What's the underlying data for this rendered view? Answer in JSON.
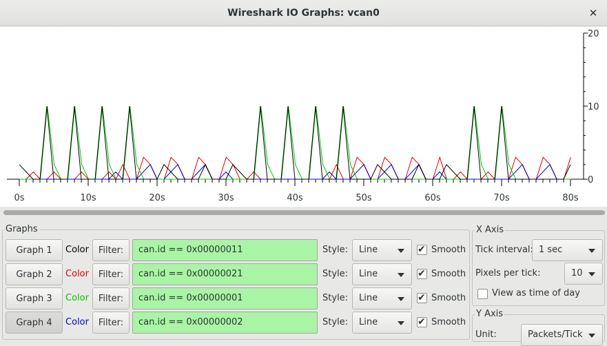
{
  "window": {
    "title": "Wireshark IO Graphs: vcan0",
    "close_glyph": "✕"
  },
  "plot": {
    "x_ticks": [
      "0s",
      "10s",
      "20s",
      "30s",
      "40s",
      "50s",
      "60s",
      "70s",
      "80s"
    ],
    "y_ticks": [
      "20",
      "10",
      "0"
    ],
    "colors": {
      "graph1": "#000000",
      "graph2": "#e00000",
      "graph3": "#00c800",
      "graph4": "#0000e0"
    }
  },
  "graphs_frame": {
    "label": "Graphs",
    "rows": [
      {
        "button": "Graph 1",
        "color_label": "Color",
        "color": "#000000",
        "filter_button": "Filter:",
        "filter": "can.id == 0x00000011",
        "style_label": "Style:",
        "style": "Line",
        "smooth_label": "Smooth",
        "smooth_checked": true
      },
      {
        "button": "Graph 2",
        "color_label": "Color",
        "color": "#e00000",
        "filter_button": "Filter:",
        "filter": "can.id == 0x00000021",
        "style_label": "Style:",
        "style": "Line",
        "smooth_label": "Smooth",
        "smooth_checked": true
      },
      {
        "button": "Graph 3",
        "color_label": "Color",
        "color": "#00c800",
        "filter_button": "Filter:",
        "filter": "can.id == 0x00000001",
        "style_label": "Style:",
        "style": "Line",
        "smooth_label": "Smooth",
        "smooth_checked": true
      },
      {
        "button": "Graph 4",
        "color_label": "Color",
        "color": "#0000e0",
        "filter_button": "Filter:",
        "filter": "can.id == 0x00000002",
        "style_label": "Style:",
        "style": "Line",
        "smooth_label": "Smooth",
        "smooth_checked": true
      }
    ]
  },
  "x_axis": {
    "label": "X Axis",
    "tick_interval_label": "Tick interval:",
    "tick_interval": "1 sec",
    "pixels_per_tick_label": "Pixels per tick:",
    "pixels_per_tick": "10",
    "time_of_day_label": "View as time of day",
    "time_of_day_checked": false
  },
  "y_axis": {
    "label": "Y Axis",
    "unit_label": "Unit:",
    "unit": "Packets/Tick"
  },
  "check_glyph": "✔"
}
